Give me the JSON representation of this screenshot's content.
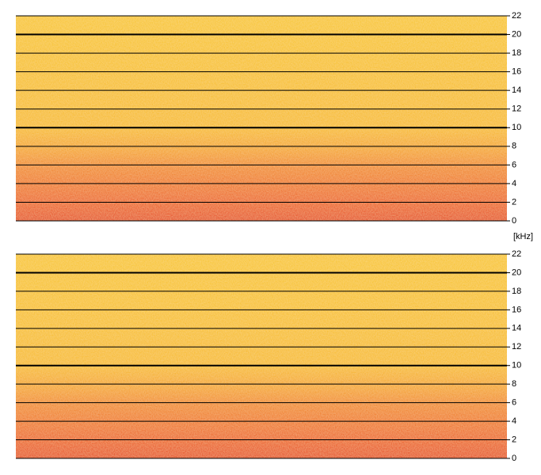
{
  "chart_data": [
    {
      "type": "spectrogram",
      "ylim": [
        0,
        22
      ],
      "yticks": [
        0,
        2,
        4,
        6,
        8,
        10,
        12,
        14,
        16,
        18,
        20,
        22
      ],
      "grid": true,
      "y_label": "[kHz]"
    },
    {
      "type": "spectrogram",
      "ylim": [
        0,
        22
      ],
      "yticks": [
        0,
        2,
        4,
        6,
        8,
        10,
        12,
        14,
        16,
        18,
        20,
        22
      ],
      "grid": true
    }
  ]
}
